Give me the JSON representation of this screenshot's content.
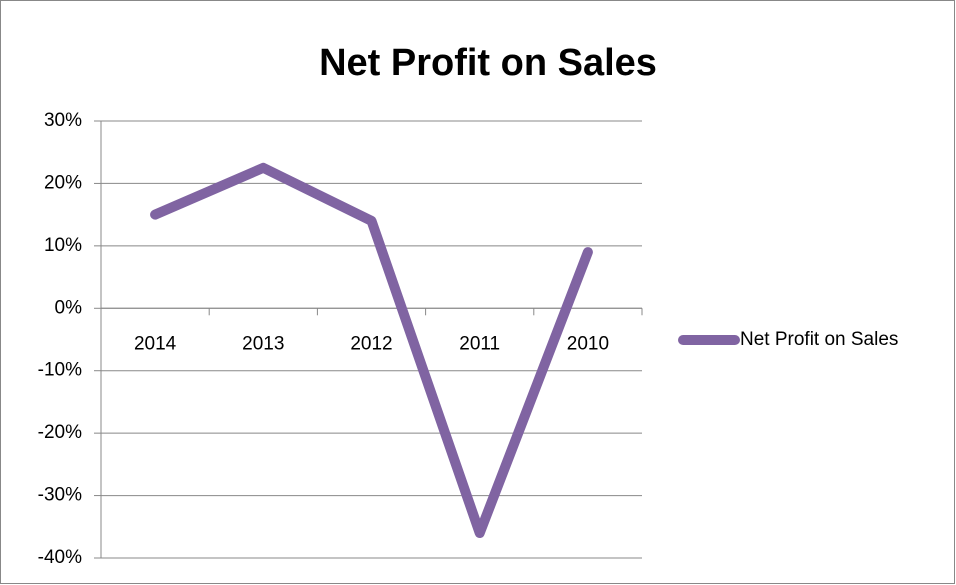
{
  "chart_data": {
    "type": "line",
    "title": "Net Profit on Sales",
    "categories": [
      "2014",
      "2013",
      "2012",
      "2011",
      "2010"
    ],
    "series": [
      {
        "name": "Net Profit on Sales",
        "color": "#8064a2",
        "values": [
          15,
          22.5,
          14,
          -36,
          9
        ]
      }
    ],
    "ylim": [
      -40,
      30
    ],
    "yticks": [
      {
        "value": -40,
        "label": "-40%"
      },
      {
        "value": -30,
        "label": "-30%"
      },
      {
        "value": -20,
        "label": "-20%"
      },
      {
        "value": -10,
        "label": "-10%"
      },
      {
        "value": 0,
        "label": "0%"
      },
      {
        "value": 10,
        "label": "10%"
      },
      {
        "value": 20,
        "label": "20%"
      },
      {
        "value": 30,
        "label": "30%"
      }
    ],
    "grid": true,
    "legend": "right"
  }
}
